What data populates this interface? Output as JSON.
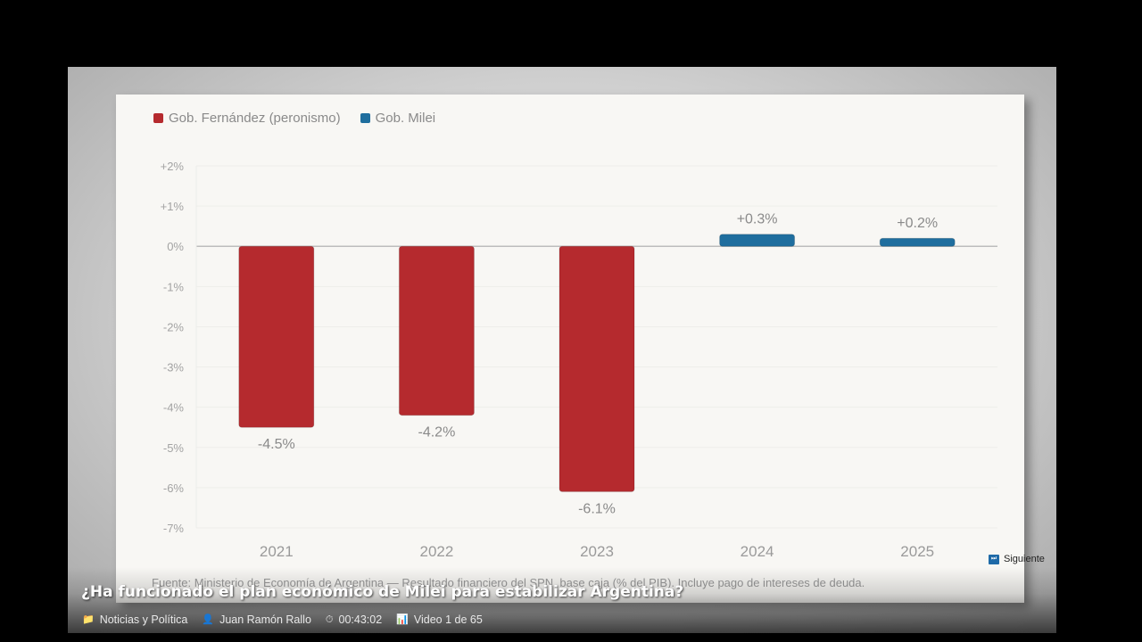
{
  "video": {
    "title": "¿Ha funcionado el plan económico de Milei para estabilizar Argentina?",
    "category": "Noticias y Política",
    "author": "Juan Ramón Rallo",
    "duration": "00:43:02",
    "position": "Video 1 de 65",
    "next_label": "Siguiente",
    "icons": {
      "category": "folder-icon",
      "author": "user-icon",
      "duration": "stopwatch-icon",
      "position": "chart-icon",
      "next": "skip-next-icon"
    }
  },
  "chart_data": {
    "type": "bar",
    "title": "",
    "xlabel": "",
    "ylabel": "",
    "categories": [
      "2021",
      "2022",
      "2023",
      "2024",
      "2025"
    ],
    "values": [
      -4.5,
      -4.2,
      -6.1,
      0.3,
      0.2
    ],
    "value_labels": [
      "-4.5%",
      "-4.2%",
      "-6.1%",
      "+0.3%",
      "+0.2%"
    ],
    "series_of_category": [
      0,
      0,
      0,
      1,
      1
    ],
    "series": [
      {
        "name": "Gob. Fernández (peronismo)",
        "color": "#b52a2e"
      },
      {
        "name": "Gob. Milei",
        "color": "#1f6e9e"
      }
    ],
    "ylim": [
      -7,
      2
    ],
    "yticks": [
      2,
      1,
      0,
      -1,
      -2,
      -3,
      -4,
      -5,
      -6,
      -7
    ],
    "ytick_labels": [
      "+2%",
      "+1%",
      "0%",
      "-1%",
      "-2%",
      "-3%",
      "-4%",
      "-5%",
      "-6%",
      "-7%"
    ],
    "grid": true,
    "legend_position": "top-left",
    "source": "Fuente: Ministerio de Economía de Argentina — Resultado financiero del SPN, base caja (% del PIB). Incluye pago de intereses de deuda."
  }
}
